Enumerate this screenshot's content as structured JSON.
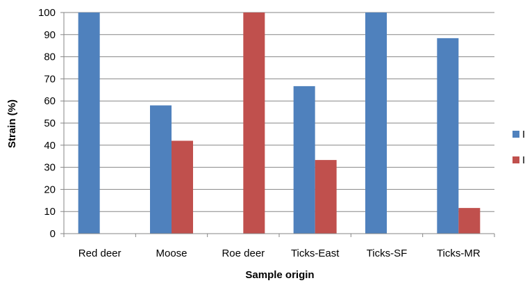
{
  "chart_data": {
    "type": "bar",
    "title": "",
    "xlabel": "Sample origin",
    "ylabel": "Strain (%)",
    "ylim": [
      0,
      100
    ],
    "yticks": [
      0,
      10,
      20,
      30,
      40,
      50,
      60,
      70,
      80,
      90,
      100
    ],
    "grid": true,
    "legend_position": "right",
    "categories": [
      "Red deer",
      "Moose",
      "Roe deer",
      "Ticks-East",
      "Ticks-SF",
      "Ticks-MR"
    ],
    "series": [
      {
        "name": "I",
        "color": "#4F81BD",
        "values": [
          100,
          58,
          0,
          66.7,
          100,
          88.4
        ]
      },
      {
        "name": "I",
        "color": "#C0504D",
        "values": [
          0,
          42,
          100,
          33.3,
          0,
          11.6
        ]
      }
    ]
  }
}
